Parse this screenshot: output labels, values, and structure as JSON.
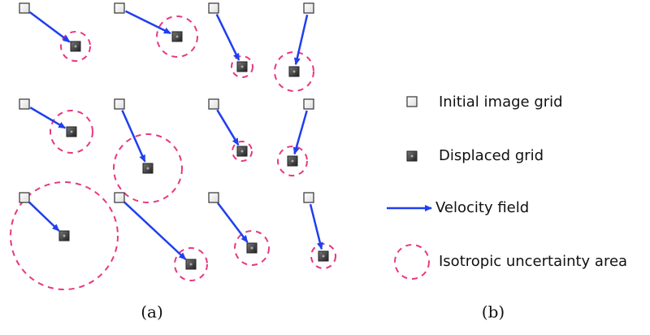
{
  "legend": {
    "items": [
      {
        "label": "Initial image grid"
      },
      {
        "label": "Displaced grid"
      },
      {
        "label": "Velocity field"
      },
      {
        "label": "Isotropic uncertainty area"
      }
    ]
  },
  "captions": {
    "left": "(a)",
    "right": "(b)"
  }
}
